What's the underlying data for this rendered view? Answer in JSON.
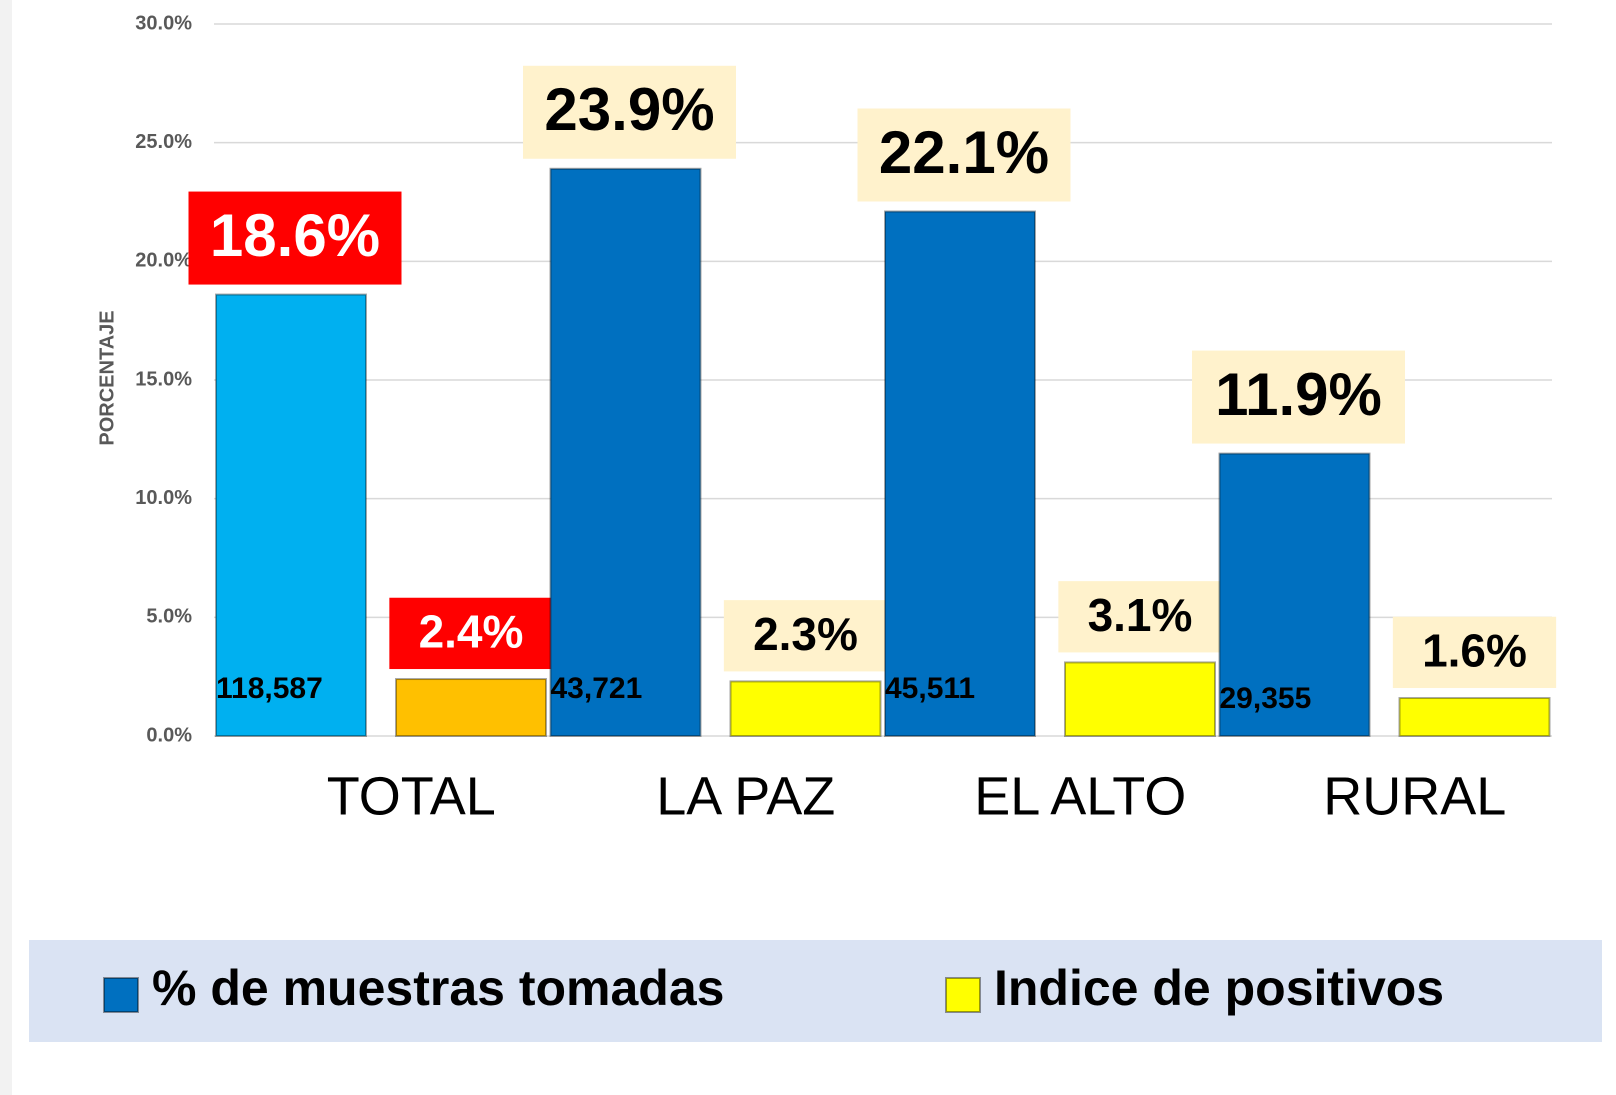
{
  "chart_data": {
    "type": "bar",
    "y_label": "PORCENTAJE",
    "categories": [
      "TOTAL",
      "LA PAZ",
      "EL ALTO",
      "RURAL"
    ],
    "ylim": [
      0,
      30
    ],
    "yticks": [
      {
        "value": 0,
        "label": "0.0%"
      },
      {
        "value": 5,
        "label": "5.0%"
      },
      {
        "value": 10,
        "label": "10.0%"
      },
      {
        "value": 15,
        "label": "15.0%"
      },
      {
        "value": 20,
        "label": "20.0%"
      },
      {
        "value": 25,
        "label": "25.0%"
      },
      {
        "value": 30,
        "label": "30.0%"
      }
    ],
    "grid": true,
    "series": [
      {
        "name": "% de muestras tomadas",
        "color": "#0070c0",
        "bar_colors": [
          "#00b0f0",
          "#0070c0",
          "#0070c0",
          "#0070c0"
        ],
        "label_fills": [
          "#ff0000",
          "#fff2cc",
          "#fff2cc",
          "#fff2cc"
        ],
        "label_text_colors": [
          "#ffffff",
          "#000000",
          "#000000",
          "#000000"
        ],
        "values": [
          18.6,
          23.9,
          22.1,
          11.9
        ],
        "value_labels": [
          "18.6%",
          "23.9%",
          "22.1%",
          "11.9%"
        ],
        "counts": [
          118587,
          43721,
          45511,
          29355
        ],
        "count_labels": [
          "118,587",
          "43,721",
          "45,511",
          "29,355"
        ]
      },
      {
        "name": "Indice de positivos",
        "color": "#ffff00",
        "bar_colors": [
          "#ffc000",
          "#ffff00",
          "#ffff00",
          "#ffff00"
        ],
        "label_fills": [
          "#ff0000",
          "#fff2cc",
          "#fff2cc",
          "#fff2cc"
        ],
        "label_text_colors": [
          "#ffffff",
          "#000000",
          "#000000",
          "#000000"
        ],
        "values": [
          2.4,
          2.3,
          3.1,
          1.6
        ],
        "value_labels": [
          "2.4%",
          "2.3%",
          "3.1%",
          "1.6%"
        ]
      }
    ]
  }
}
